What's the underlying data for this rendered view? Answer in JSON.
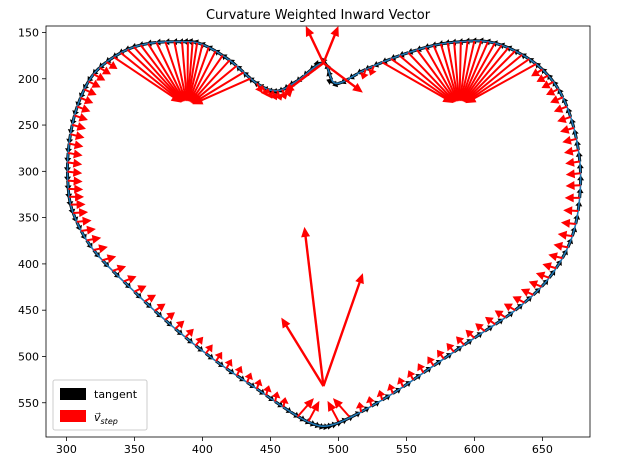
{
  "chart_data": {
    "type": "quiver",
    "title": "Curvature Weighted Inward Vector",
    "xlabel": "",
    "ylabel": "",
    "xlim": [
      285,
      685
    ],
    "ylim": [
      587,
      143
    ],
    "y_inverted": true,
    "grid": false,
    "xticks": [
      300,
      350,
      400,
      450,
      500,
      550,
      600,
      650
    ],
    "yticks": [
      150,
      200,
      250,
      300,
      350,
      400,
      450,
      500,
      550
    ],
    "legend": {
      "placement": "lower-left",
      "entries": [
        {
          "label": "tangent",
          "color": "#000000"
        },
        {
          "label": "v⃗ step",
          "color": "#ff0000"
        }
      ]
    },
    "curve": {
      "color": "#1f77b4",
      "description_points": {
        "x": [
          489,
          470,
          455,
          440,
          420,
          400,
          385,
          360,
          340,
          320,
          308,
          302,
          301,
          305,
          320,
          350,
          380,
          410,
          440,
          465,
          480,
          492,
          510,
          540,
          570,
          600,
          630,
          655,
          672,
          678,
          675,
          665,
          650,
          630,
          610,
          590,
          570,
          545,
          520,
          498,
          489
        ],
        "y": [
          183,
          202,
          213,
          205,
          180,
          163,
          160,
          162,
          172,
          195,
          230,
          270,
          310,
          345,
          385,
          430,
          470,
          505,
          535,
          560,
          572,
          575,
          565,
          540,
          510,
          480,
          450,
          415,
          370,
          315,
          265,
          220,
          190,
          170,
          160,
          160,
          164,
          175,
          190,
          205,
          183
        ]
      }
    },
    "vector_series": [
      {
        "name": "tangent",
        "color": "#000000",
        "style": "short arrows tangent to the curve along its whole length"
      },
      {
        "name": "v_step",
        "color": "#ff0000",
        "style": "inward arrows; fan toward (389,230) and (589,230) from the lobes; long arrows at cusp (489,183) and bottom tip (489,532)",
        "long_arrows": [
          {
            "x0": 489,
            "y0": 183,
            "x1": 476,
            "y1": 143
          },
          {
            "x0": 489,
            "y0": 183,
            "x1": 500,
            "y1": 143
          },
          {
            "x0": 489,
            "y0": 183,
            "x1": 460,
            "y1": 215
          },
          {
            "x0": 489,
            "y0": 183,
            "x1": 518,
            "y1": 215
          },
          {
            "x0": 489,
            "y0": 532,
            "x1": 475,
            "y1": 360
          },
          {
            "x0": 489,
            "y0": 532,
            "x1": 518,
            "y1": 410
          },
          {
            "x0": 489,
            "y0": 532,
            "x1": 458,
            "y1": 458
          }
        ]
      }
    ]
  }
}
